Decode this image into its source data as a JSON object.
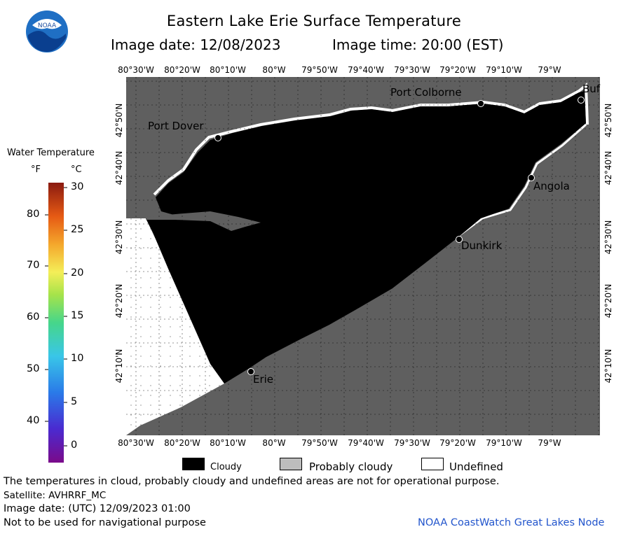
{
  "logo": {
    "text": "NOAA"
  },
  "header": {
    "title": "Eastern Lake Erie Surface Temperature",
    "image_date": "Image date: 12/08/2023",
    "image_time": "Image time: 20:00 (EST)"
  },
  "map": {
    "top_ticks": [
      "80°30'W",
      "80°20'W",
      "80°10'W",
      "80°W",
      "79°50'W",
      "79°40'W",
      "79°30'W",
      "79°20'W",
      "79°10'W",
      "79°W"
    ],
    "bottom_ticks": [
      "80°30'W",
      "80°20'W",
      "80°10'W",
      "80°W",
      "79°50'W",
      "79°40'W",
      "79°30'W",
      "79°20'W",
      "79°10'W",
      "79°W"
    ],
    "left_ticks": [
      "42°50'N",
      "42°40'N",
      "42°30'N",
      "42°20'N",
      "42°10'N"
    ],
    "right_ticks": [
      "42°50'N",
      "42°40'N",
      "42°30'N",
      "42°20'N",
      "42°10'N"
    ],
    "cities": [
      "Port Colborne",
      "Port Dover",
      "Angola",
      "Dunkirk",
      "Erie",
      "Buf"
    ],
    "colors": {
      "land": "#5f5f5f",
      "cloudy": "#000000",
      "undefined": "#ffffff",
      "grid": "#000000"
    }
  },
  "scale": {
    "title": "Water Temperature",
    "unit_f": "°F",
    "unit_c": "°C",
    "f_labels": [
      "80",
      "70",
      "60",
      "50",
      "40"
    ],
    "c_labels": [
      "30",
      "25",
      "20",
      "15",
      "10",
      "5",
      "0"
    ]
  },
  "legend": {
    "cloudy": "Cloudy",
    "probably_cloudy": "Probably cloudy",
    "undefined": "Undefined"
  },
  "footer": {
    "note": "The temperatures in cloud, probably cloudy and undefined areas are not for operational purpose.",
    "satellite": "Satellite: AVHRRF_MC",
    "image_date_utc": "Image date: (UTC) 12/09/2023  01:00",
    "nav_warning": "Not to be used for navigational purpose",
    "credit": "NOAA CoastWatch Great Lakes Node"
  }
}
